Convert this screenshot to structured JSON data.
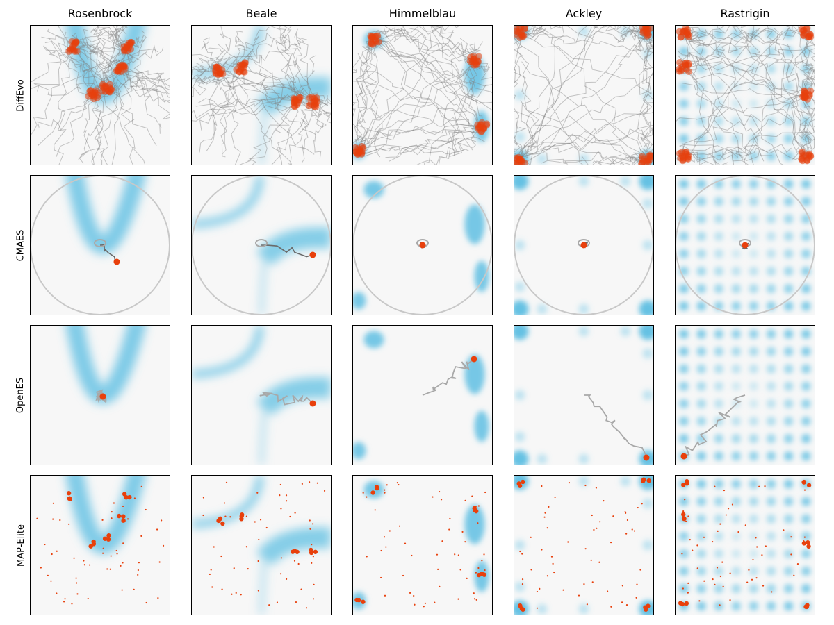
{
  "colors": {
    "landscape": "#56bce1",
    "background": "#f7f7f7",
    "point": "#e8400c",
    "trajectory": "#808080",
    "circle": "#c8c8c8"
  },
  "column_titles": [
    "Rosenbrock",
    "Beale",
    "Himmelblau",
    "Ackley",
    "Rastrigin"
  ],
  "row_titles": [
    "DiffEvo",
    "CMAES",
    "OpenES",
    "MAP-Elite"
  ],
  "chart_data": {
    "type": "heatmap",
    "description_free": true,
    "axes": {
      "ticks": "none",
      "xlim": [
        0,
        1
      ],
      "ylim": [
        0,
        1
      ]
    },
    "functions": [
      "Rosenbrock",
      "Beale",
      "Himmelblau",
      "Ackley",
      "Rastrigin"
    ],
    "methods": [
      "DiffEvo",
      "CMAES",
      "OpenES",
      "MAP-Elite"
    ],
    "cmaes_final": [
      [
        0.62,
        0.38
      ],
      [
        0.87,
        0.43
      ],
      [
        0.5,
        0.5
      ],
      [
        0.5,
        0.5
      ],
      [
        0.5,
        0.5
      ]
    ],
    "openes_final": [
      [
        0.52,
        0.49
      ],
      [
        0.87,
        0.44
      ],
      [
        0.87,
        0.76
      ],
      [
        0.95,
        0.05
      ],
      [
        0.06,
        0.06
      ]
    ],
    "optima": [
      [
        [
          0.3,
          0.85
        ],
        [
          0.7,
          0.85
        ],
        [
          0.55,
          0.55
        ],
        [
          0.45,
          0.5
        ],
        [
          0.65,
          0.7
        ]
      ],
      [
        [
          0.87,
          0.45
        ],
        [
          0.75,
          0.45
        ],
        [
          0.2,
          0.68
        ],
        [
          0.35,
          0.7
        ]
      ],
      [
        [
          0.15,
          0.9
        ],
        [
          0.87,
          0.75
        ],
        [
          0.93,
          0.27
        ],
        [
          0.05,
          0.1
        ]
      ],
      [
        [
          0.04,
          0.95
        ],
        [
          0.95,
          0.96
        ],
        [
          0.04,
          0.04
        ],
        [
          0.95,
          0.04
        ]
      ],
      [
        [
          0.06,
          0.95
        ],
        [
          0.94,
          0.95
        ],
        [
          0.06,
          0.06
        ],
        [
          0.94,
          0.06
        ],
        [
          0.06,
          0.7
        ],
        [
          0.94,
          0.5
        ]
      ]
    ]
  }
}
